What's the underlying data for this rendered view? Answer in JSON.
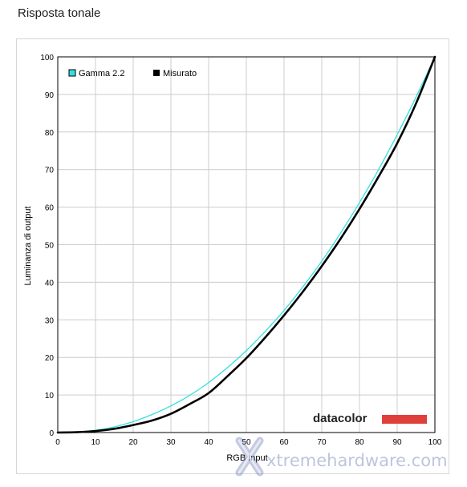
{
  "page": {
    "title": "Risposta tonale"
  },
  "brand": {
    "name": "datacolor",
    "color": "#e0403a"
  },
  "watermark": {
    "text": "xtremehardware.com"
  },
  "colors": {
    "gamma": "#33e0e0",
    "measured": "#000000",
    "grid": "#cccccc"
  },
  "chart_data": {
    "type": "line",
    "title": "",
    "xlabel": "RGB Input",
    "ylabel": "Luminanza di output",
    "xlim": [
      0,
      100
    ],
    "ylim": [
      0,
      100
    ],
    "xticks": [
      "0",
      "10",
      "20",
      "30",
      "40",
      "50",
      "60",
      "70",
      "80",
      "90",
      "100"
    ],
    "yticks": [
      "0",
      "10",
      "20",
      "30",
      "40",
      "50",
      "60",
      "70",
      "80",
      "90",
      "100"
    ],
    "grid": true,
    "legend_position": "top-left",
    "series": [
      {
        "name": "Gamma 2.2",
        "color": "#33e0e0",
        "x": [
          0,
          5,
          10,
          15,
          20,
          25,
          30,
          35,
          40,
          45,
          50,
          55,
          60,
          65,
          70,
          75,
          80,
          85,
          90,
          95,
          100
        ],
        "y": [
          0,
          0.1,
          0.6,
          1.5,
          2.9,
          4.8,
          7.1,
          9.9,
          13.3,
          17.3,
          21.8,
          26.9,
          32.5,
          38.8,
          45.6,
          53.1,
          61.2,
          69.9,
          79.3,
          89.3,
          100
        ]
      },
      {
        "name": "Misurato",
        "color": "#000000",
        "x": [
          0,
          5,
          10,
          15,
          20,
          25,
          30,
          35,
          40,
          45,
          50,
          55,
          60,
          65,
          70,
          75,
          80,
          85,
          90,
          95,
          100
        ],
        "y": [
          0,
          0.1,
          0.4,
          1.0,
          2.0,
          3.2,
          5.0,
          7.6,
          10.5,
          15.0,
          19.8,
          25.3,
          31.2,
          37.5,
          44.3,
          51.6,
          59.5,
          68.0,
          77.0,
          87.6,
          100
        ]
      }
    ]
  }
}
